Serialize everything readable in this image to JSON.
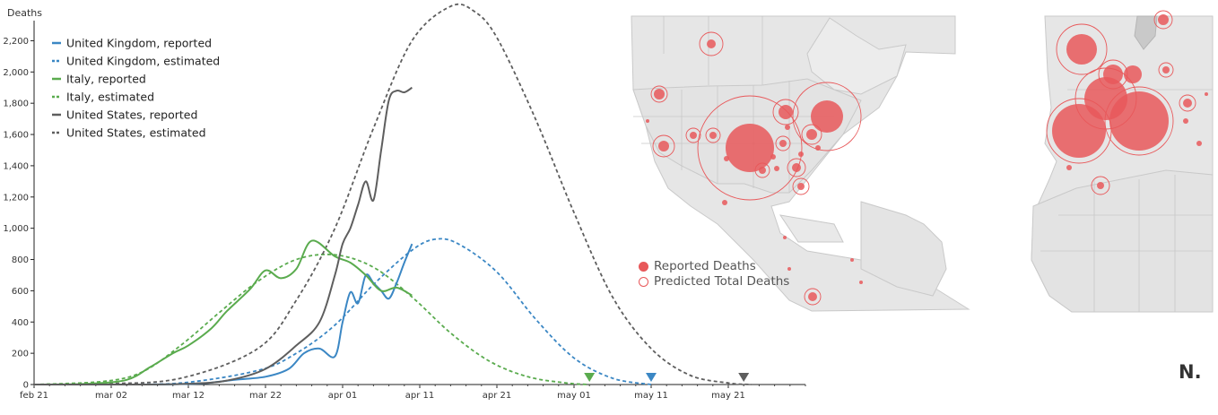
{
  "chart_data": {
    "type": "line",
    "ylabel": "Deaths",
    "ylim": [
      0,
      2300
    ],
    "y_ticks": [
      "0",
      "200",
      "400",
      "600",
      "800",
      "1,000",
      "1,200",
      "1,400",
      "1,600",
      "1,800",
      "2,000",
      "2,200"
    ],
    "x_ticks": [
      "feb 21",
      "mar 02",
      "mar 12",
      "mar 22",
      "apr 01",
      "apr 11",
      "apr 21",
      "may 01",
      "may 11",
      "may 21"
    ],
    "x_start": "2020-02-21",
    "x_end": "2020-05-31",
    "legend_position": "top-left",
    "series": [
      {
        "name": "United Kingdom, reported",
        "color": "#3b87c4",
        "dash": false,
        "x": [
          "2020-02-21",
          "2020-03-05",
          "2020-03-10",
          "2020-03-14",
          "2020-03-18",
          "2020-03-22",
          "2020-03-25",
          "2020-03-27",
          "2020-03-29",
          "2020-03-31",
          "2020-04-01",
          "2020-04-02",
          "2020-04-03",
          "2020-04-04",
          "2020-04-05",
          "2020-04-06",
          "2020-04-07",
          "2020-04-08",
          "2020-04-09",
          "2020-04-10"
        ],
        "values": [
          0,
          0,
          2,
          8,
          30,
          50,
          100,
          200,
          230,
          180,
          400,
          590,
          520,
          700,
          650,
          600,
          550,
          650,
          780,
          900
        ]
      },
      {
        "name": "United Kingdom, estimated",
        "color": "#3b87c4",
        "dash": true,
        "x": [
          "2020-02-21",
          "2020-03-01",
          "2020-03-11",
          "2020-03-21",
          "2020-03-26",
          "2020-03-31",
          "2020-04-05",
          "2020-04-10",
          "2020-04-13",
          "2020-04-16",
          "2020-04-21",
          "2020-04-26",
          "2020-05-01",
          "2020-05-06",
          "2020-05-11"
        ],
        "values": [
          0,
          2,
          10,
          90,
          200,
          380,
          640,
          860,
          930,
          900,
          720,
          420,
          170,
          40,
          0
        ]
      },
      {
        "name": "Italy, reported",
        "color": "#5aab4e",
        "dash": false,
        "x": [
          "2020-02-21",
          "2020-02-28",
          "2020-03-04",
          "2020-03-07",
          "2020-03-10",
          "2020-03-12",
          "2020-03-15",
          "2020-03-17",
          "2020-03-20",
          "2020-03-22",
          "2020-03-24",
          "2020-03-26",
          "2020-03-28",
          "2020-03-31",
          "2020-04-02",
          "2020-04-04",
          "2020-04-06",
          "2020-04-08",
          "2020-04-10"
        ],
        "values": [
          0,
          5,
          30,
          110,
          200,
          250,
          360,
          470,
          610,
          730,
          680,
          740,
          920,
          820,
          780,
          700,
          600,
          620,
          570
        ]
      },
      {
        "name": "Italy, estimated",
        "color": "#5aab4e",
        "dash": true,
        "x": [
          "2020-02-21",
          "2020-03-01",
          "2020-03-06",
          "2020-03-11",
          "2020-03-16",
          "2020-03-21",
          "2020-03-26",
          "2020-03-31",
          "2020-04-05",
          "2020-04-10",
          "2020-04-15",
          "2020-04-20",
          "2020-04-25",
          "2020-04-30",
          "2020-05-03"
        ],
        "values": [
          0,
          20,
          80,
          250,
          460,
          660,
          800,
          830,
          750,
          560,
          330,
          150,
          50,
          10,
          0
        ]
      },
      {
        "name": "United States, reported",
        "color": "#5e5e5e",
        "dash": false,
        "x": [
          "2020-02-21",
          "2020-03-05",
          "2020-03-12",
          "2020-03-17",
          "2020-03-22",
          "2020-03-26",
          "2020-03-29",
          "2020-03-31",
          "2020-04-01",
          "2020-04-02",
          "2020-04-03",
          "2020-04-04",
          "2020-04-05",
          "2020-04-06",
          "2020-04-07",
          "2020-04-08",
          "2020-04-09",
          "2020-04-10"
        ],
        "values": [
          0,
          0,
          5,
          25,
          100,
          250,
          400,
          700,
          900,
          1000,
          1150,
          1300,
          1180,
          1500,
          1820,
          1880,
          1870,
          1900
        ]
      },
      {
        "name": "United States, estimated",
        "color": "#5e5e5e",
        "dash": true,
        "x": [
          "2020-02-21",
          "2020-03-01",
          "2020-03-11",
          "2020-03-21",
          "2020-03-26",
          "2020-03-31",
          "2020-04-05",
          "2020-04-10",
          "2020-04-15",
          "2020-04-18",
          "2020-04-21",
          "2020-04-26",
          "2020-05-01",
          "2020-05-06",
          "2020-05-11",
          "2020-05-16",
          "2020-05-21",
          "2020-05-24"
        ],
        "values": [
          0,
          5,
          40,
          230,
          540,
          1000,
          1640,
          2200,
          2420,
          2390,
          2220,
          1700,
          1100,
          560,
          230,
          60,
          10,
          0
        ]
      }
    ],
    "end_markers": [
      {
        "series": "Italy",
        "x": "2020-05-03",
        "color": "#5aab4e"
      },
      {
        "series": "United Kingdom",
        "x": "2020-05-11",
        "color": "#3b87c4"
      },
      {
        "series": "United States",
        "x": "2020-05-23",
        "color": "#5e5e5e"
      }
    ]
  },
  "map_legend": {
    "reported": "Reported Deaths",
    "predicted": "Predicted Total Deaths",
    "color": "#e8585a"
  },
  "corner_label": "N."
}
